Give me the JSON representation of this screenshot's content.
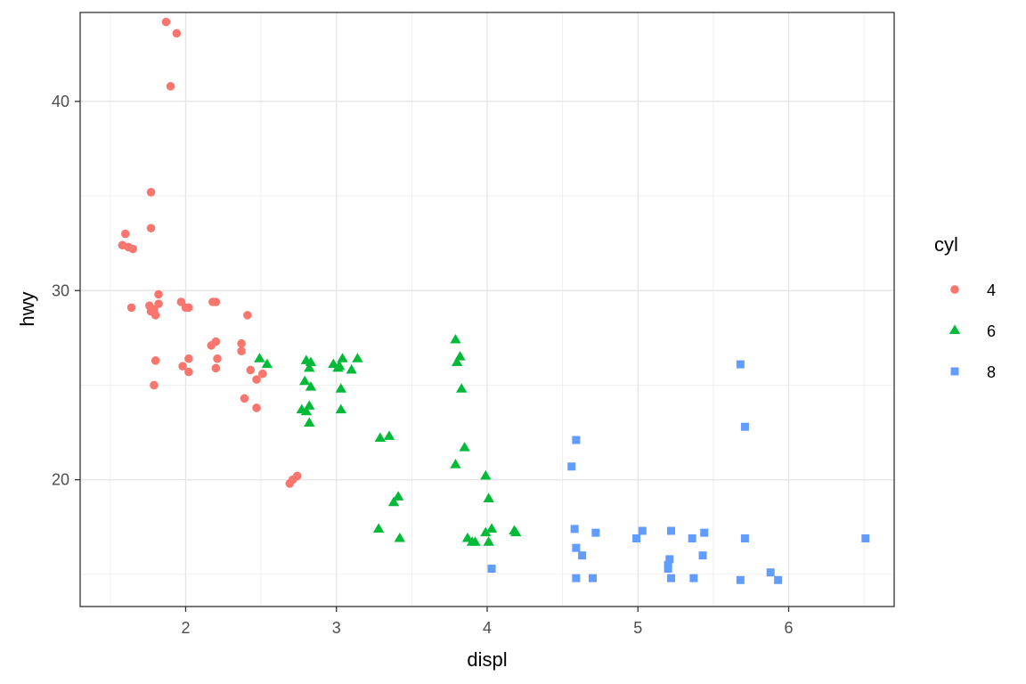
{
  "chart_data": {
    "type": "scatter",
    "xlabel": "displ",
    "ylabel": "hwy",
    "xlim": [
      1.3,
      6.7
    ],
    "ylim": [
      13.3,
      44.7
    ],
    "x_ticks": [
      2,
      3,
      4,
      5,
      6
    ],
    "y_ticks": [
      20,
      30,
      40
    ],
    "grid": true,
    "legend": {
      "title": "cyl",
      "placement": "right"
    },
    "series": [
      {
        "name": "4",
        "shape": "circle",
        "color": "#F8766D",
        "points": [
          [
            1.87,
            44.2
          ],
          [
            1.94,
            43.6
          ],
          [
            1.9,
            40.8
          ],
          [
            1.77,
            35.2
          ],
          [
            1.77,
            33.3
          ],
          [
            1.6,
            33.0
          ],
          [
            1.58,
            32.4
          ],
          [
            1.62,
            32.3
          ],
          [
            1.65,
            32.2
          ],
          [
            1.82,
            29.8
          ],
          [
            1.82,
            29.3
          ],
          [
            1.76,
            29.2
          ],
          [
            1.79,
            29.0
          ],
          [
            1.77,
            28.9
          ],
          [
            1.8,
            28.7
          ],
          [
            1.64,
            29.1
          ],
          [
            1.97,
            29.4
          ],
          [
            2.0,
            29.1
          ],
          [
            2.02,
            29.1
          ],
          [
            2.18,
            29.4
          ],
          [
            2.2,
            29.4
          ],
          [
            2.41,
            28.7
          ],
          [
            2.2,
            27.3
          ],
          [
            2.17,
            27.1
          ],
          [
            2.37,
            27.2
          ],
          [
            2.37,
            26.8
          ],
          [
            1.8,
            26.3
          ],
          [
            2.02,
            26.4
          ],
          [
            2.21,
            26.4
          ],
          [
            1.98,
            26.0
          ],
          [
            2.02,
            25.7
          ],
          [
            2.2,
            25.9
          ],
          [
            2.43,
            25.8
          ],
          [
            2.51,
            25.6
          ],
          [
            2.47,
            25.3
          ],
          [
            1.79,
            25.0
          ],
          [
            2.39,
            24.3
          ],
          [
            2.47,
            23.8
          ],
          [
            2.74,
            20.2
          ],
          [
            2.71,
            20.0
          ],
          [
            2.69,
            19.8
          ]
        ]
      },
      {
        "name": "6",
        "shape": "triangle",
        "color": "#00BA38",
        "points": [
          [
            3.79,
            27.4
          ],
          [
            2.49,
            26.4
          ],
          [
            3.04,
            26.4
          ],
          [
            3.14,
            26.4
          ],
          [
            2.8,
            26.3
          ],
          [
            2.83,
            26.2
          ],
          [
            3.82,
            26.5
          ],
          [
            3.8,
            26.2
          ],
          [
            2.54,
            26.1
          ],
          [
            2.98,
            26.1
          ],
          [
            3.02,
            26.0
          ],
          [
            3.01,
            25.9
          ],
          [
            2.82,
            25.9
          ],
          [
            3.1,
            25.8
          ],
          [
            2.79,
            25.2
          ],
          [
            2.83,
            24.9
          ],
          [
            3.03,
            24.8
          ],
          [
            3.83,
            24.8
          ],
          [
            2.82,
            23.9
          ],
          [
            2.77,
            23.7
          ],
          [
            3.03,
            23.7
          ],
          [
            2.8,
            23.6
          ],
          [
            2.82,
            23.0
          ],
          [
            3.29,
            22.2
          ],
          [
            3.35,
            22.3
          ],
          [
            3.85,
            21.7
          ],
          [
            3.79,
            20.8
          ],
          [
            3.99,
            20.2
          ],
          [
            4.01,
            19.0
          ],
          [
            3.41,
            19.1
          ],
          [
            3.38,
            18.8
          ],
          [
            3.28,
            17.4
          ],
          [
            3.42,
            16.9
          ],
          [
            4.03,
            17.4
          ],
          [
            3.99,
            17.2
          ],
          [
            4.18,
            17.3
          ],
          [
            4.19,
            17.2
          ],
          [
            3.87,
            16.9
          ],
          [
            3.9,
            16.7
          ],
          [
            3.92,
            16.7
          ],
          [
            4.01,
            16.7
          ]
        ]
      },
      {
        "name": "8",
        "shape": "square",
        "color": "#619CFF",
        "points": [
          [
            5.68,
            26.1
          ],
          [
            5.71,
            22.8
          ],
          [
            4.59,
            22.1
          ],
          [
            4.56,
            20.7
          ],
          [
            4.58,
            17.4
          ],
          [
            5.03,
            17.3
          ],
          [
            5.22,
            17.3
          ],
          [
            5.44,
            17.2
          ],
          [
            4.72,
            17.2
          ],
          [
            4.99,
            16.9
          ],
          [
            5.36,
            16.9
          ],
          [
            5.71,
            16.9
          ],
          [
            6.51,
            16.9
          ],
          [
            4.59,
            16.4
          ],
          [
            4.63,
            16.0
          ],
          [
            5.43,
            16.0
          ],
          [
            5.21,
            15.8
          ],
          [
            5.2,
            15.5
          ],
          [
            4.03,
            15.3
          ],
          [
            5.2,
            15.3
          ],
          [
            5.88,
            15.1
          ],
          [
            4.59,
            14.8
          ],
          [
            4.7,
            14.8
          ],
          [
            5.22,
            14.8
          ],
          [
            5.37,
            14.8
          ],
          [
            5.68,
            14.7
          ],
          [
            5.93,
            14.7
          ]
        ]
      }
    ]
  }
}
